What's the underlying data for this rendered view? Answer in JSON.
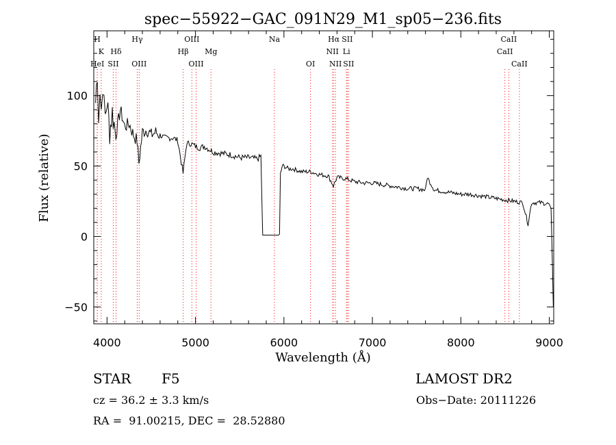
{
  "chart_data": {
    "type": "line",
    "title": "spec−55922−GAC_091N29_M1_sp05−236.fits",
    "xlabel": "Wavelength (Å)",
    "ylabel": "Flux (relative)",
    "xlim": [
      3850,
      9050
    ],
    "ylim": [
      -62,
      146
    ],
    "xticks": [
      4000,
      5000,
      6000,
      7000,
      8000,
      9000
    ],
    "xtick_labels": [
      "4000",
      "5000",
      "6000",
      "7000",
      "8000",
      "9000"
    ],
    "yticks": [
      -50,
      0,
      50,
      100
    ],
    "ytick_labels": [
      "−50",
      "0",
      "50",
      "100"
    ],
    "grid": false,
    "line_color": "#000000",
    "marker_color": "#ff0000",
    "series": [
      {
        "x": [
          3870,
          3890,
          3905,
          3920,
          3935,
          3950,
          3965,
          3980,
          4000,
          4030,
          4060,
          4100,
          4150,
          4200,
          4250,
          4300,
          4340,
          4360,
          4400,
          4450,
          4500,
          4550,
          4600,
          4650,
          4700,
          4750,
          4800,
          4860,
          4900,
          4950,
          5000,
          5050,
          5100,
          5150,
          5200,
          5300,
          5400,
          5500,
          5600,
          5700,
          5740,
          5760,
          5780,
          5800,
          5850,
          5900,
          5950,
          5960,
          5980,
          6000,
          6050,
          6100,
          6200,
          6300,
          6400,
          6500,
          6560,
          6600,
          6700,
          6800,
          6900,
          7000,
          7100,
          7200,
          7300,
          7400,
          7500,
          7600,
          7620,
          7700,
          7800,
          7900,
          8000,
          8100,
          8200,
          8300,
          8400,
          8500,
          8600,
          8700,
          8760,
          8800,
          8900,
          9000,
          9020,
          9035,
          9045
        ],
        "y": [
          95,
          118,
          86,
          102,
          90,
          110,
          92,
          85,
          96,
          75,
          88,
          72,
          90,
          78,
          80,
          72,
          68,
          52,
          74,
          76,
          72,
          74,
          72,
          70,
          70,
          70,
          68,
          45,
          66,
          66,
          64,
          63,
          64,
          62,
          60,
          59,
          58,
          56,
          56,
          55,
          57,
          1,
          1,
          1,
          1,
          1,
          1,
          44,
          50,
          50,
          48,
          48,
          46,
          46,
          44,
          43,
          36,
          42,
          41,
          39,
          38,
          38,
          37,
          36,
          35,
          34,
          34,
          33,
          42,
          33,
          32,
          31,
          30,
          30,
          29,
          28,
          27,
          26,
          25,
          24,
          9,
          24,
          24,
          23,
          20,
          -20,
          -50
        ]
      }
    ],
    "lines": [
      {
        "x": 3889,
        "label": "H",
        "row": 0
      },
      {
        "x": 3934,
        "label": "K",
        "row": 1
      },
      {
        "x": 3890,
        "label": "HeI",
        "row": 2
      },
      {
        "x": 4102,
        "label": "Hδ",
        "row": 1
      },
      {
        "x": 4070,
        "label": "SII",
        "row": 2
      },
      {
        "x": 4341,
        "label": "Hγ",
        "row": 0
      },
      {
        "x": 4363,
        "label": "OIII",
        "row": 2
      },
      {
        "x": 4861,
        "label": "Hβ",
        "row": 1
      },
      {
        "x": 4959,
        "label": "OIII",
        "row": 0
      },
      {
        "x": 5007,
        "label": "OIII",
        "row": 2
      },
      {
        "x": 5175,
        "label": "Mg",
        "row": 1
      },
      {
        "x": 5893,
        "label": "Na",
        "row": 0
      },
      {
        "x": 6300,
        "label": "OI",
        "row": 2
      },
      {
        "x": 6548,
        "label": "NII",
        "row": 1
      },
      {
        "x": 6563,
        "label": "Hα",
        "row": 0
      },
      {
        "x": 6583,
        "label": "NII",
        "row": 2
      },
      {
        "x": 6707,
        "label": "Li",
        "row": 1
      },
      {
        "x": 6716,
        "label": "SII",
        "row": 0
      },
      {
        "x": 6731,
        "label": "SII",
        "row": 2
      },
      {
        "x": 8498,
        "label": "CaII",
        "row": 1
      },
      {
        "x": 8542,
        "label": "CaII",
        "row": 0
      },
      {
        "x": 8662,
        "label": "CaII",
        "row": 2
      }
    ]
  },
  "info": {
    "object_class": "STAR",
    "subclass": "F5",
    "survey": "LAMOST DR2",
    "redshift_line": "cz = 36.2 ± 3.3 km/s",
    "obs_date_line": "Obs−Date: 20111226",
    "coords_line": "RA =  91.00215, DEC =  28.52880"
  }
}
